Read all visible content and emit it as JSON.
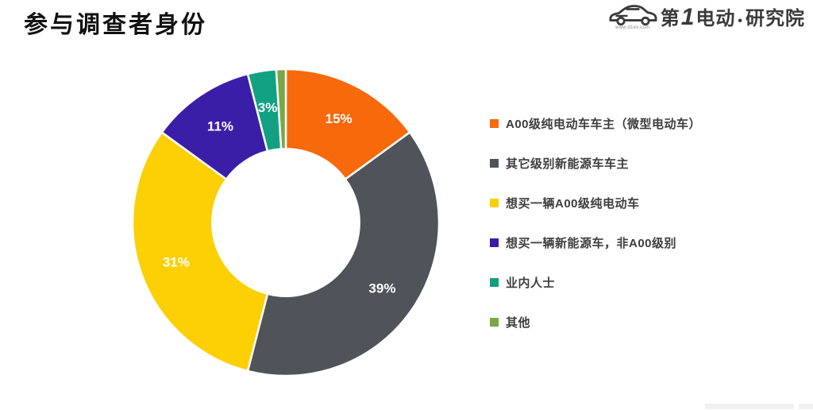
{
  "page": {
    "title": "参与调查者身份",
    "background": "#ffffff"
  },
  "logo": {
    "brand_prefix": "第",
    "brand_one": "1",
    "brand_suffix": "电动",
    "separator": "•",
    "brand_org": "研究院",
    "url": "www.d1ev.com",
    "ink_color": "#3a3a3a",
    "accent_color": "#f08300"
  },
  "chart_data": {
    "type": "pie",
    "style": "donut",
    "title": "参与调查者身份",
    "categories": [
      "A00级纯电动车车主（微型电动车）",
      "其它级别新能源车车主",
      "想买一辆A00级纯电动车",
      "想买一辆新能源车，非A00级别",
      "业内人士",
      "其他"
    ],
    "values": [
      15,
      39,
      31,
      11,
      3,
      1
    ],
    "labels": [
      "15%",
      "39%",
      "31%",
      "11%",
      "3%",
      ""
    ],
    "colors": [
      "#f7690a",
      "#50545a",
      "#fcd005",
      "#3b1ea8",
      "#12a083",
      "#79a942"
    ],
    "start_angle_deg": 0,
    "direction": "clockwise",
    "inner_radius_ratio": 0.48,
    "slice_gap_color": "#ffffff",
    "label_color": "#ffffff",
    "legend_position": "right"
  }
}
